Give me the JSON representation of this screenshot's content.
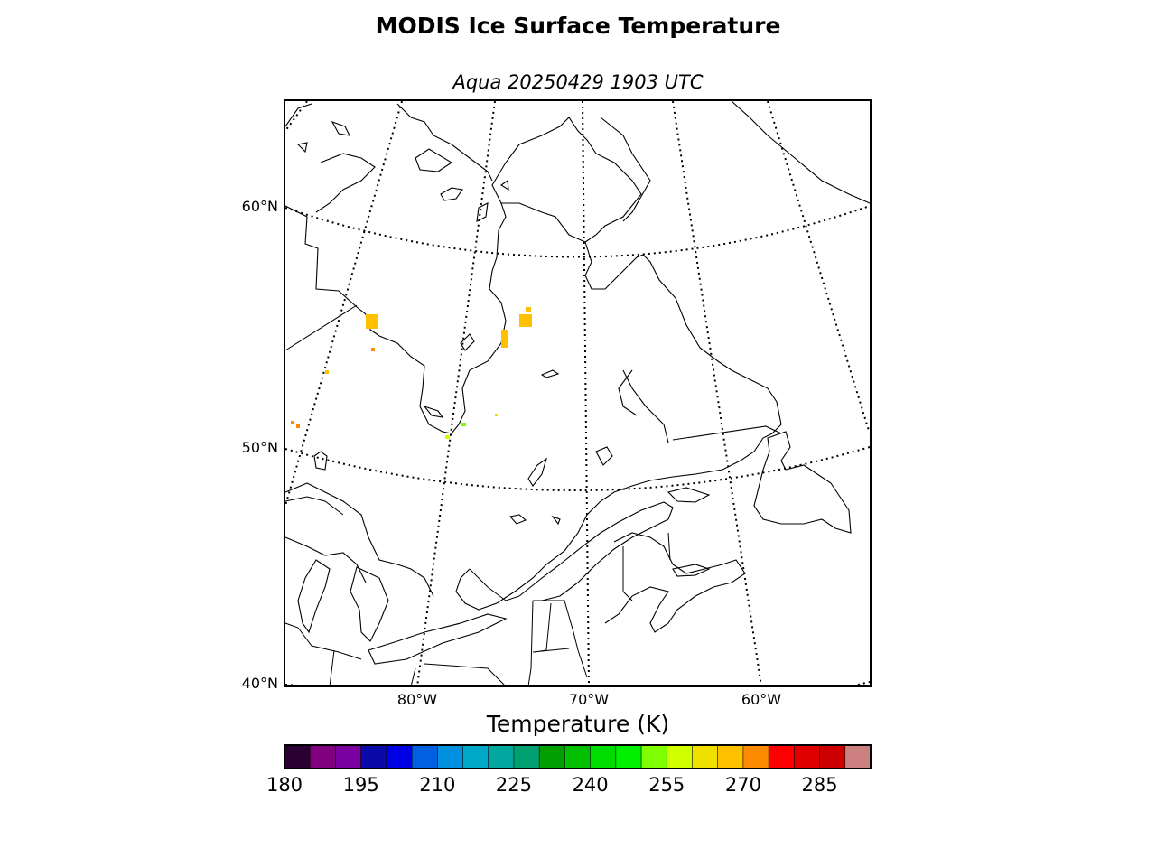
{
  "title": "MODIS Ice Surface Temperature",
  "subtitle": "Aqua 20250429 1903 UTC",
  "map": {
    "latitude_labels": [
      "60°N",
      "50°N",
      "40°N"
    ],
    "longitude_labels": [
      "80°W",
      "70°W",
      "60°W"
    ],
    "gridline_style": "dotted",
    "pixel_color": "#ffc000"
  },
  "colorbar": {
    "label": "Temperature (K)",
    "min": 180,
    "max": 295,
    "tick_values": [
      "180",
      "195",
      "210",
      "225",
      "240",
      "255",
      "270",
      "285"
    ],
    "colors": [
      "#2a0032",
      "#800080",
      "#7a00a0",
      "#0a0aa8",
      "#0000e6",
      "#0060e0",
      "#0090e0",
      "#00a8c8",
      "#00a8a0",
      "#00a070",
      "#00a000",
      "#00c000",
      "#00dc00",
      "#00f000",
      "#80ff00",
      "#d0ff00",
      "#f0e000",
      "#ffc000",
      "#ff8c00",
      "#ff0000",
      "#e00000",
      "#cc0000",
      "#cc8080"
    ]
  }
}
